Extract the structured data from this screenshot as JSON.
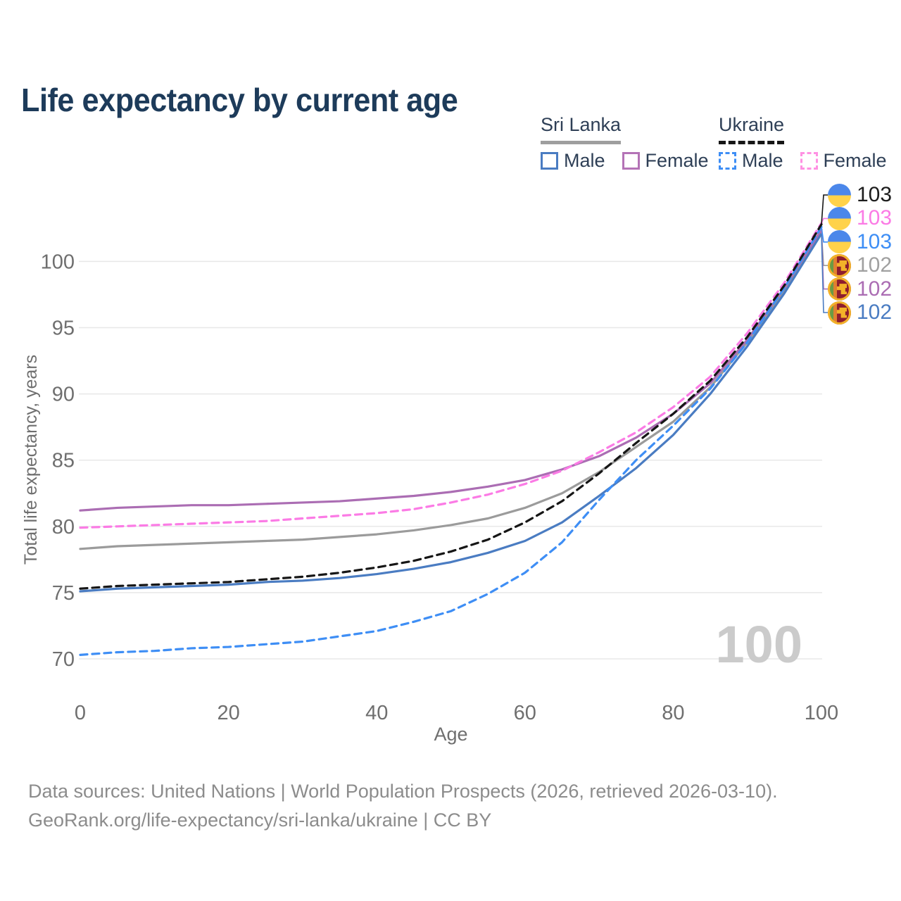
{
  "title": "Life expectancy by current age",
  "legend": {
    "groups": [
      {
        "name": "Sri Lanka",
        "underline": "solid",
        "underline_color": "#9e9e9e",
        "items": [
          {
            "label": "Male",
            "color": "#4a7cc2",
            "dashed": false
          },
          {
            "label": "Female",
            "color": "#b473b6",
            "dashed": false
          }
        ]
      },
      {
        "name": "Ukraine",
        "underline": "dashed",
        "underline_color": "#161616",
        "items": [
          {
            "label": "Male",
            "color": "#3e8ef5",
            "dashed": true
          },
          {
            "label": "Female",
            "color": "#ff92e3",
            "dashed": true
          }
        ]
      }
    ]
  },
  "footer": {
    "line1": "Data sources: United Nations | World Population Prospects (2026, retrieved 2026-03-10).",
    "line2": "GeoRank.org/life-expectancy/sri-lanka/ukraine | CC BY"
  },
  "chart_data": {
    "type": "line",
    "title": "Life expectancy by current age",
    "xlabel": "Age",
    "ylabel": "Total life expectancy, years",
    "watermark": "100",
    "grid": "horizontal",
    "xlim": [
      0,
      100
    ],
    "ylim": [
      68,
      104
    ],
    "xticks": [
      0,
      20,
      40,
      60,
      80,
      100
    ],
    "yticks": [
      70,
      75,
      80,
      85,
      90,
      95,
      100
    ],
    "x": [
      0,
      5,
      10,
      15,
      20,
      25,
      30,
      35,
      40,
      45,
      50,
      55,
      60,
      65,
      70,
      75,
      80,
      85,
      90,
      95,
      100
    ],
    "series": [
      {
        "name": "Sri Lanka",
        "country": "Sri Lanka",
        "group": "both-sexes",
        "color": "#9b9b9b",
        "dashed": false,
        "values": [
          78.3,
          78.5,
          78.6,
          78.7,
          78.8,
          78.9,
          79.0,
          79.2,
          79.4,
          79.7,
          80.1,
          80.6,
          81.4,
          82.5,
          84.1,
          86.0,
          87.9,
          90.5,
          93.9,
          97.8,
          102.3
        ],
        "end_label": "102",
        "end_color": "#a0a0a0",
        "flag": "sri-lanka",
        "end_row": 3
      },
      {
        "name": "Sri Lanka Female",
        "country": "Sri Lanka",
        "group": "female",
        "color": "#ab6db3",
        "dashed": false,
        "values": [
          81.2,
          81.4,
          81.5,
          81.6,
          81.6,
          81.7,
          81.8,
          81.9,
          82.1,
          82.3,
          82.6,
          83.0,
          83.5,
          84.3,
          85.3,
          86.7,
          88.5,
          90.8,
          94.1,
          98.0,
          102.4
        ],
        "end_label": "102",
        "end_color": "#ab6db3",
        "flag": "sri-lanka",
        "end_row": 4
      },
      {
        "name": "Sri Lanka Male",
        "country": "Sri Lanka",
        "group": "male",
        "color": "#4a7cc2",
        "dashed": false,
        "values": [
          75.1,
          75.3,
          75.4,
          75.5,
          75.6,
          75.8,
          75.9,
          76.1,
          76.4,
          76.8,
          77.3,
          78.0,
          78.9,
          80.3,
          82.3,
          84.4,
          86.9,
          90.0,
          93.6,
          97.6,
          102.1
        ],
        "end_label": "102",
        "end_color": "#4a7cc2",
        "flag": "sri-lanka",
        "end_row": 5
      },
      {
        "name": "Ukraine Female",
        "country": "Ukraine",
        "group": "female",
        "color": "#fb7be5",
        "dashed": true,
        "values": [
          79.9,
          80.0,
          80.1,
          80.2,
          80.3,
          80.4,
          80.6,
          80.8,
          81.0,
          81.3,
          81.8,
          82.4,
          83.2,
          84.2,
          85.6,
          87.1,
          89.0,
          91.3,
          94.6,
          98.4,
          102.9
        ],
        "end_label": "103",
        "end_color": "#fb7be5",
        "flag": "ukraine",
        "end_row": 1
      },
      {
        "name": "Ukraine Male",
        "country": "Ukraine",
        "group": "male",
        "color": "#3e8ef5",
        "dashed": true,
        "values": [
          70.3,
          70.5,
          70.6,
          70.8,
          70.9,
          71.1,
          71.3,
          71.7,
          72.1,
          72.8,
          73.6,
          74.9,
          76.5,
          78.8,
          82.0,
          85.0,
          87.6,
          90.4,
          93.9,
          98.0,
          102.6
        ],
        "end_label": "103",
        "end_color": "#3e8ef5",
        "flag": "ukraine",
        "end_row": 2
      },
      {
        "name": "Ukraine",
        "country": "Ukraine",
        "group": "both-sexes",
        "color": "#161616",
        "dashed": true,
        "values": [
          75.3,
          75.5,
          75.6,
          75.7,
          75.8,
          76.0,
          76.2,
          76.5,
          76.9,
          77.4,
          78.1,
          79.0,
          80.3,
          81.9,
          84.0,
          86.3,
          88.5,
          91.0,
          94.3,
          98.2,
          102.8
        ],
        "end_label": "103",
        "end_color": "#1c1c1c",
        "flag": "ukraine",
        "end_row": 0
      }
    ]
  }
}
